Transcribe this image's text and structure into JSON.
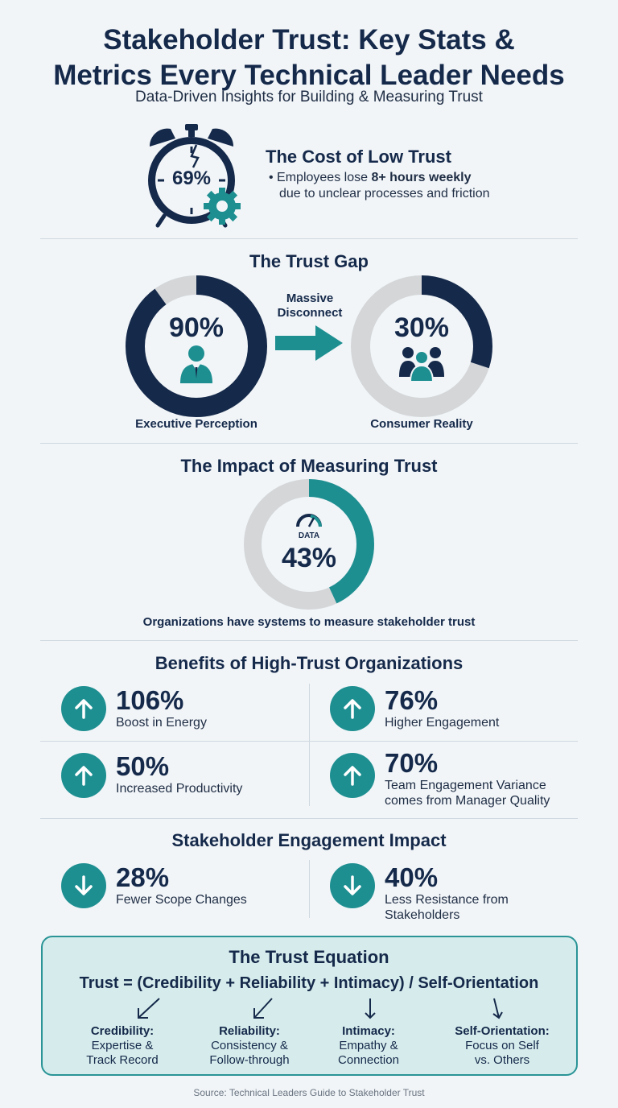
{
  "header": {
    "title_line1": "Stakeholder Trust: Key Stats &",
    "title_line2": "Metrics Every Technical Leader Needs",
    "subtitle": "Data-Driven Insights for Building & Measuring Trust"
  },
  "cost": {
    "clock_value": "69%",
    "title": "The Cost of Low Trust",
    "bullet_prefix": "Employees lose ",
    "bullet_bold": "8+ hours weekly",
    "bullet_suffix": "due to unclear processes and friction",
    "icon": "stopwatch-gear-icon"
  },
  "trust_gap": {
    "title": "The Trust Gap",
    "arrow_label_line1": "Massive",
    "arrow_label_line2": "Disconnect",
    "left": {
      "value": "90%",
      "fraction": 0.9,
      "caption": "Executive Perception",
      "icon": "executive-person-icon"
    },
    "right": {
      "value": "30%",
      "fraction": 0.3,
      "caption": "Consumer Reality",
      "icon": "people-group-icon"
    },
    "colors": {
      "dark": "#15294a",
      "light": "#d4d6d8",
      "accent": "#1e8f91"
    }
  },
  "measuring": {
    "title": "The Impact of Measuring Trust",
    "badge": "DATA",
    "value": "43%",
    "fraction": 0.43,
    "caption": "Organizations have systems to measure stakeholder trust",
    "icon": "gauge-icon"
  },
  "benefits": {
    "title": "Benefits of High-Trust Organizations",
    "items": [
      {
        "value": "106%",
        "label_line1": "Boost in Energy",
        "label_line2": "",
        "icon": "arrow-up-icon"
      },
      {
        "value": "76%",
        "label_line1": "Higher Engagement",
        "label_line2": "",
        "icon": "arrow-up-icon"
      },
      {
        "value": "50%",
        "label_line1": "Increased Productivity",
        "label_line2": "",
        "icon": "arrow-up-icon"
      },
      {
        "value": "70%",
        "label_line1": "Team Engagement Variance",
        "label_line2": "comes from Manager Quality",
        "icon": "arrow-up-icon"
      }
    ]
  },
  "engagement": {
    "title": "Stakeholder Engagement Impact",
    "items": [
      {
        "value": "28%",
        "label_line1": "Fewer Scope Changes",
        "label_line2": "",
        "icon": "arrow-down-icon"
      },
      {
        "value": "40%",
        "label_line1": "Less Resistance from",
        "label_line2": "Stakeholders",
        "icon": "arrow-down-icon"
      }
    ]
  },
  "equation": {
    "title": "The Trust Equation",
    "formula": "Trust = (Credibility + Reliability + Intimacy) / Self-Orientation",
    "terms": [
      {
        "head": "Credibility:",
        "line1": "Expertise &",
        "line2": "Track Record"
      },
      {
        "head": "Reliability:",
        "line1": "Consistency &",
        "line2": "Follow-through"
      },
      {
        "head": "Intimacy:",
        "line1": "Empathy &",
        "line2": "Connection"
      },
      {
        "head": "Self-Orientation:",
        "line1": "Focus on Self",
        "line2": "vs. Others"
      }
    ]
  },
  "source": "Source: Technical Leaders Guide to Stakeholder Trust"
}
